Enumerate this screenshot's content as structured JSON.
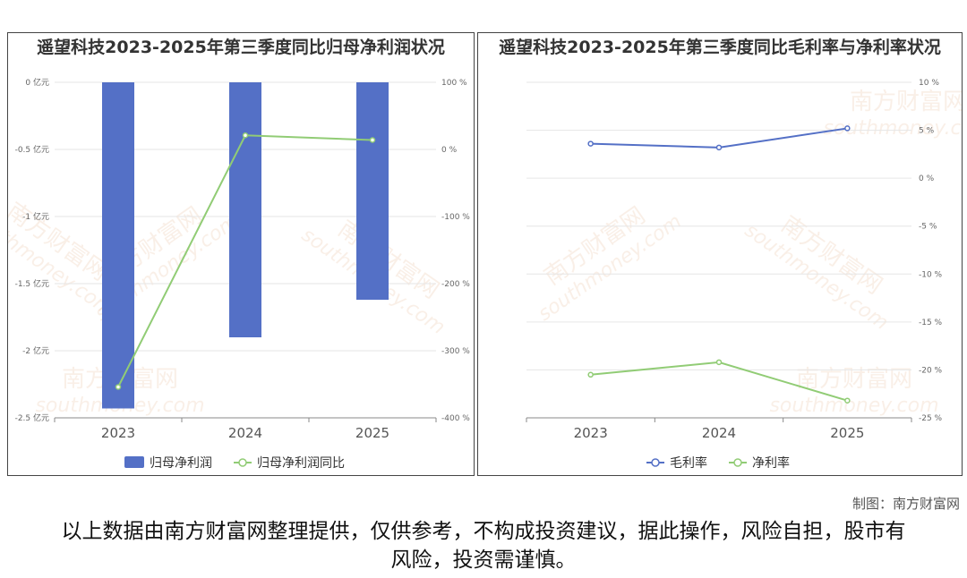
{
  "chart_data": [
    {
      "type": "bar",
      "title": "遥望科技2023-2025年第三季度同比归母净利润状况",
      "categories": [
        "2023",
        "2024",
        "2025"
      ],
      "series": [
        {
          "name": "归母净利润",
          "type": "bar",
          "axis": "left",
          "values": [
            -2.43,
            -1.9,
            -1.62
          ],
          "color": "#5470c6"
        },
        {
          "name": "归母净利润同比",
          "type": "line",
          "axis": "right",
          "values": [
            -354,
            21,
            14
          ],
          "color": "#91cc75"
        }
      ],
      "y_left": {
        "ticks": [
          "0 亿元",
          "-0.5 亿元",
          "-1 亿元",
          "-1.5 亿元",
          "-2 亿元",
          "-2.5 亿元"
        ],
        "ylim": [
          -2.5,
          0
        ]
      },
      "y_right": {
        "ticks": [
          "100 %",
          "0 %",
          "-100 %",
          "-200 %",
          "-300 %",
          "-400 %"
        ],
        "ylim": [
          -400,
          100
        ]
      },
      "legend_position": "bottom",
      "grid": true
    },
    {
      "type": "line",
      "title": "遥望科技2023-2025年第三季度同比毛利率与净利率状况",
      "categories": [
        "2023",
        "2024",
        "2025"
      ],
      "series": [
        {
          "name": "毛利率",
          "values": [
            3.6,
            3.2,
            5.2
          ],
          "color": "#5470c6"
        },
        {
          "name": "净利率",
          "values": [
            -20.5,
            -19.2,
            -23.2
          ],
          "color": "#91cc75"
        }
      ],
      "y_right": {
        "ticks": [
          "10 %",
          "5 %",
          "0 %",
          "-5 %",
          "-10 %",
          "-15 %",
          "-20 %",
          "-25 %"
        ],
        "ylim": [
          -25,
          10
        ]
      },
      "legend_position": "bottom",
      "grid": true
    }
  ],
  "watermark": {
    "cn": "南方财富网",
    "en": "southmoney.com"
  },
  "footer": {
    "credit": "制图：南方财富网",
    "disclaimer": "以上数据由南方财富网整理提供，仅供参考，不构成投资建议，据此操作，风险自担，股市有风险，投资需谨慎。"
  }
}
